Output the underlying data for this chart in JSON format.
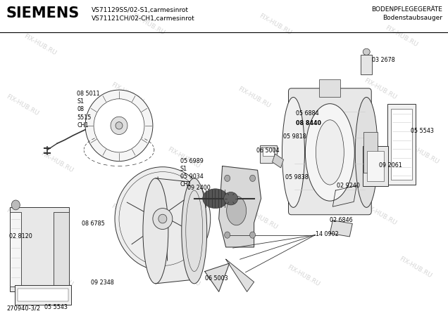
{
  "title_company": "SIEMENS",
  "title_line1": "VS71129SS/02-S1,carmesinrot",
  "title_line2": "VS71121CH/02-CH1,carmesinrot",
  "title_right1": "BODENPFLEGEGERÄTE",
  "title_right2": "Bodenstaubsauger",
  "footer": "270940-3/2",
  "watermark": "FIX-HUB.RU",
  "bg_color": "#ffffff"
}
